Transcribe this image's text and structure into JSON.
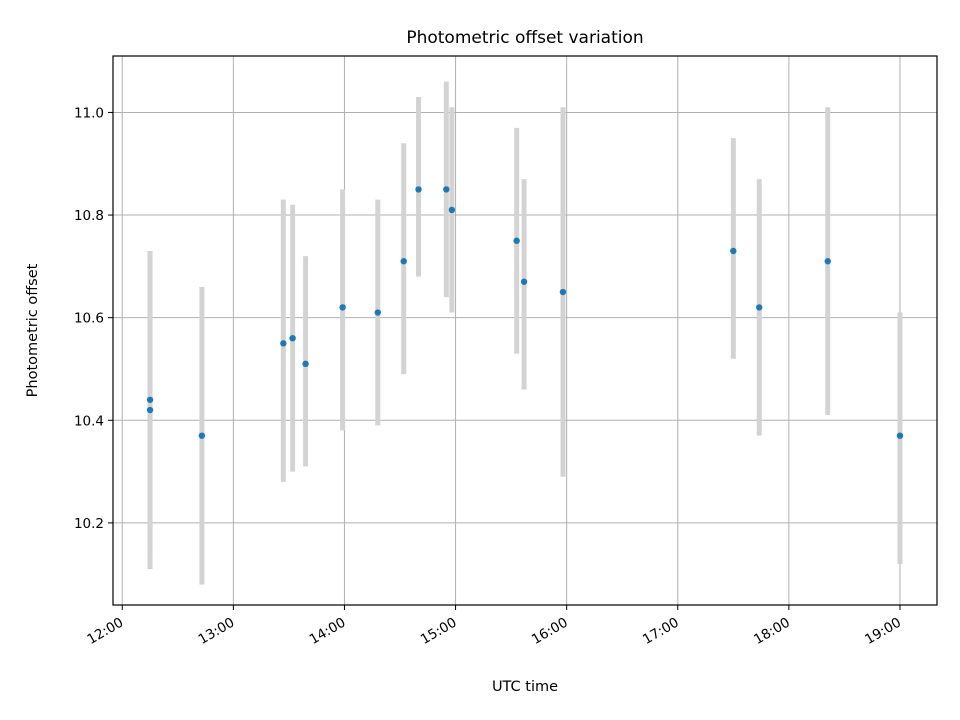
{
  "chart_data": {
    "type": "scatter",
    "title": "Photometric offset variation",
    "xlabel": "UTC time",
    "ylabel": "Photometric offset",
    "x_is_time": true,
    "xlim": [
      "11:55",
      "19:20"
    ],
    "ylim": [
      10.04,
      11.11
    ],
    "x_ticks": [
      "12:00",
      "13:00",
      "14:00",
      "15:00",
      "16:00",
      "17:00",
      "18:00",
      "19:00"
    ],
    "y_ticks": [
      10.2,
      10.4,
      10.6,
      10.8,
      11.0
    ],
    "grid": true,
    "point_color": "#1f77b4",
    "errorbar_color": "#d3d3d3",
    "series": [
      {
        "points": [
          {
            "x": "12:15",
            "y": 10.42,
            "low": 10.11,
            "high": 10.73
          },
          {
            "x": "12:15",
            "y": 10.44,
            "low": 10.15,
            "high": 10.73
          },
          {
            "x": "12:43",
            "y": 10.37,
            "low": 10.08,
            "high": 10.66
          },
          {
            "x": "13:27",
            "y": 10.55,
            "low": 10.28,
            "high": 10.83
          },
          {
            "x": "13:32",
            "y": 10.56,
            "low": 10.3,
            "high": 10.82
          },
          {
            "x": "13:39",
            "y": 10.51,
            "low": 10.31,
            "high": 10.72
          },
          {
            "x": "13:59",
            "y": 10.62,
            "low": 10.38,
            "high": 10.85
          },
          {
            "x": "14:18",
            "y": 10.61,
            "low": 10.39,
            "high": 10.83
          },
          {
            "x": "14:32",
            "y": 10.71,
            "low": 10.49,
            "high": 10.94
          },
          {
            "x": "14:40",
            "y": 10.85,
            "low": 10.68,
            "high": 11.03
          },
          {
            "x": "14:55",
            "y": 10.85,
            "low": 10.64,
            "high": 11.06
          },
          {
            "x": "14:58",
            "y": 10.81,
            "low": 10.61,
            "high": 11.01
          },
          {
            "x": "15:33",
            "y": 10.75,
            "low": 10.53,
            "high": 10.97
          },
          {
            "x": "15:37",
            "y": 10.67,
            "low": 10.46,
            "high": 10.87
          },
          {
            "x": "15:58",
            "y": 10.65,
            "low": 10.29,
            "high": 11.01
          },
          {
            "x": "17:30",
            "y": 10.73,
            "low": 10.52,
            "high": 10.95
          },
          {
            "x": "17:44",
            "y": 10.62,
            "low": 10.37,
            "high": 10.87
          },
          {
            "x": "18:21",
            "y": 10.71,
            "low": 10.41,
            "high": 11.01
          },
          {
            "x": "19:00",
            "y": 10.37,
            "low": 10.12,
            "high": 10.61
          }
        ]
      }
    ]
  }
}
